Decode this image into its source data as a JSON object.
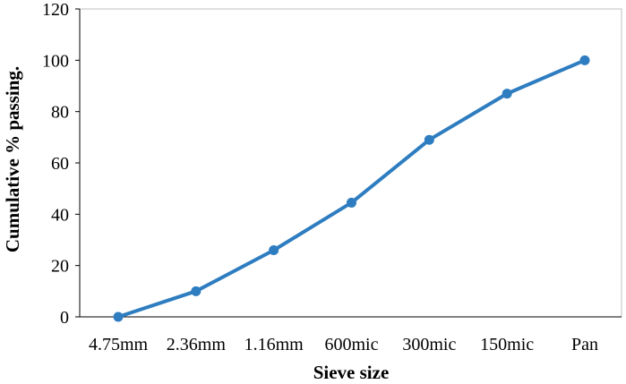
{
  "chart_data": {
    "type": "line",
    "title": "",
    "xlabel": "Sieve size",
    "ylabel": "Cumulative % passing.",
    "categories": [
      "4.75mm",
      "2.36mm",
      "1.16mm",
      "600mic",
      "300mic",
      "150mic",
      "Pan"
    ],
    "series": [
      {
        "values": [
          0,
          10,
          26,
          44.5,
          69,
          87,
          100
        ]
      }
    ],
    "ylim": [
      0,
      120
    ],
    "yticks": [
      0,
      20,
      40,
      60,
      80,
      100,
      120
    ],
    "grid": false,
    "legend": "none",
    "colors": {
      "series": "#2e7dc0",
      "axis": "#000000",
      "frame": "#bfbfbf"
    }
  }
}
